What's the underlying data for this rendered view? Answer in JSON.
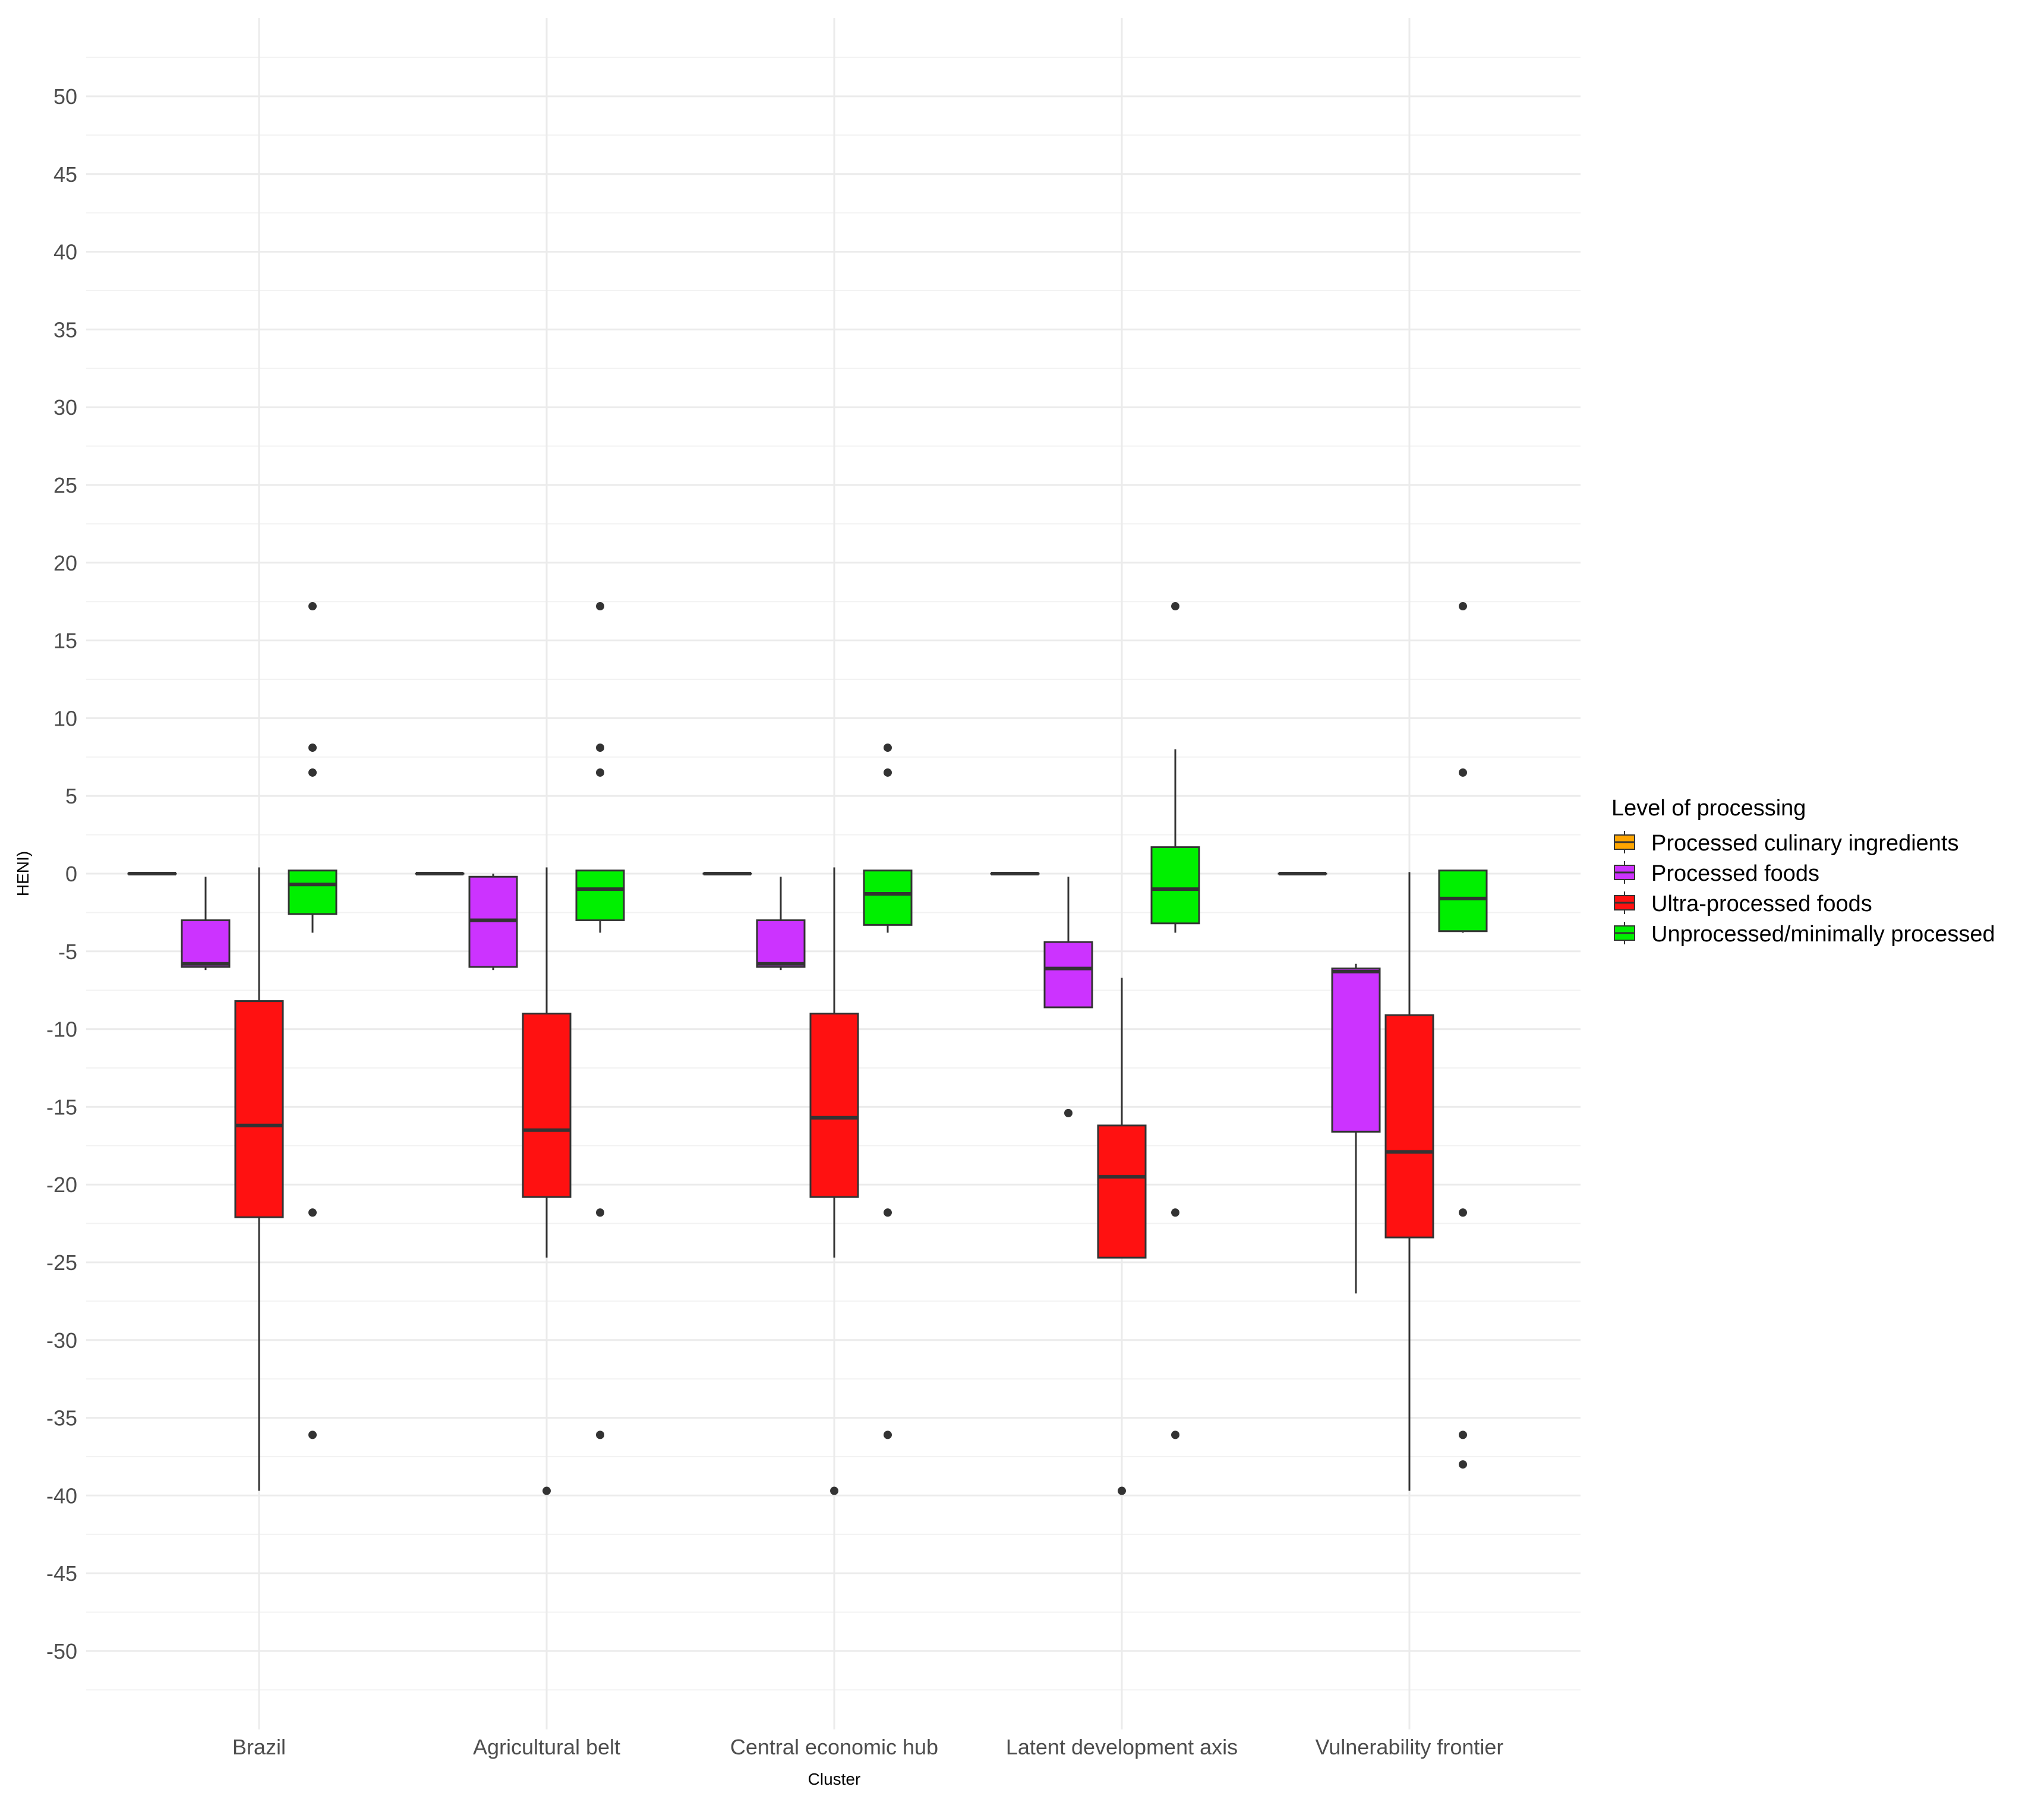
{
  "chart_data": {
    "type": "boxplot",
    "title": "",
    "xlabel": "Cluster",
    "ylabel": "HENI)",
    "ylim": [
      -55,
      55
    ],
    "yticks": [
      50,
      45,
      40,
      35,
      30,
      25,
      20,
      15,
      10,
      5,
      0,
      -5,
      -10,
      -15,
      -20,
      -25,
      -30,
      -35,
      -40,
      -45,
      -50
    ],
    "grid": true,
    "legend_position": "right",
    "legend_title": "Level of processing",
    "categories": [
      "Brazil",
      "Agricultural belt",
      "Central economic hub",
      "Latent development axis",
      "Vulnerability frontier"
    ],
    "series": [
      {
        "name": "Processed culinary ingredients",
        "color": "#FFA500",
        "boxes": [
          {
            "q1": 0,
            "median": 0,
            "q3": 0,
            "whisker_low": 0,
            "whisker_high": 0,
            "outliers": []
          },
          {
            "q1": 0,
            "median": 0,
            "q3": 0,
            "whisker_low": 0,
            "whisker_high": 0,
            "outliers": []
          },
          {
            "q1": 0,
            "median": 0,
            "q3": 0,
            "whisker_low": 0,
            "whisker_high": 0,
            "outliers": []
          },
          {
            "q1": 0,
            "median": 0,
            "q3": 0,
            "whisker_low": 0,
            "whisker_high": 0,
            "outliers": []
          },
          {
            "q1": 0,
            "median": 0,
            "q3": 0,
            "whisker_low": 0,
            "whisker_high": 0,
            "outliers": []
          }
        ]
      },
      {
        "name": "Processed foods",
        "color": "#CC33FF",
        "boxes": [
          {
            "q1": -6.0,
            "median": -5.8,
            "q3": -3.0,
            "whisker_low": -6.2,
            "whisker_high": -0.2,
            "outliers": []
          },
          {
            "q1": -6.0,
            "median": -3.0,
            "q3": -0.2,
            "whisker_low": -6.2,
            "whisker_high": 0.0,
            "outliers": []
          },
          {
            "q1": -6.0,
            "median": -5.8,
            "q3": -3.0,
            "whisker_low": -6.2,
            "whisker_high": -0.2,
            "outliers": []
          },
          {
            "q1": -8.6,
            "median": -6.1,
            "q3": -4.4,
            "whisker_low": -8.6,
            "whisker_high": -0.2,
            "outliers": [
              -15.4
            ]
          },
          {
            "q1": -16.6,
            "median": -6.3,
            "q3": -6.1,
            "whisker_low": -27.0,
            "whisker_high": -5.8,
            "outliers": []
          }
        ]
      },
      {
        "name": "Ultra-processed foods",
        "color": "#FF1111",
        "boxes": [
          {
            "q1": -22.1,
            "median": -16.2,
            "q3": -8.2,
            "whisker_low": -39.7,
            "whisker_high": 0.4,
            "outliers": []
          },
          {
            "q1": -20.8,
            "median": -16.5,
            "q3": -9.0,
            "whisker_low": -24.7,
            "whisker_high": 0.4,
            "outliers": [
              -39.7
            ]
          },
          {
            "q1": -20.8,
            "median": -15.7,
            "q3": -9.0,
            "whisker_low": -24.7,
            "whisker_high": 0.4,
            "outliers": [
              -39.7
            ]
          },
          {
            "q1": -24.7,
            "median": -19.5,
            "q3": -16.2,
            "whisker_low": -24.7,
            "whisker_high": -6.7,
            "outliers": [
              -39.7
            ]
          },
          {
            "q1": -23.4,
            "median": -17.9,
            "q3": -9.1,
            "whisker_low": -39.7,
            "whisker_high": 0.1,
            "outliers": []
          }
        ]
      },
      {
        "name": "Unprocessed/minimally processed",
        "color": "#00F000",
        "boxes": [
          {
            "q1": -2.6,
            "median": -0.7,
            "q3": 0.2,
            "whisker_low": -3.8,
            "whisker_high": 0.2,
            "outliers": [
              17.2,
              8.1,
              6.5,
              -21.8,
              -36.1
            ]
          },
          {
            "q1": -3.0,
            "median": -1.0,
            "q3": 0.2,
            "whisker_low": -3.8,
            "whisker_high": 0.2,
            "outliers": [
              17.2,
              8.1,
              6.5,
              -21.8,
              -36.1
            ]
          },
          {
            "q1": -3.3,
            "median": -1.3,
            "q3": 0.2,
            "whisker_low": -3.8,
            "whisker_high": 0.2,
            "outliers": [
              8.1,
              6.5,
              -21.8,
              -36.1
            ]
          },
          {
            "q1": -3.2,
            "median": -1.0,
            "q3": 1.7,
            "whisker_low": -3.8,
            "whisker_high": 8.0,
            "outliers": [
              17.2,
              -21.8,
              -36.1
            ]
          },
          {
            "q1": -3.7,
            "median": -1.6,
            "q3": 0.2,
            "whisker_low": -3.8,
            "whisker_high": 0.2,
            "outliers": [
              17.2,
              6.5,
              -21.8,
              -36.1,
              -38.0
            ]
          }
        ]
      }
    ]
  }
}
